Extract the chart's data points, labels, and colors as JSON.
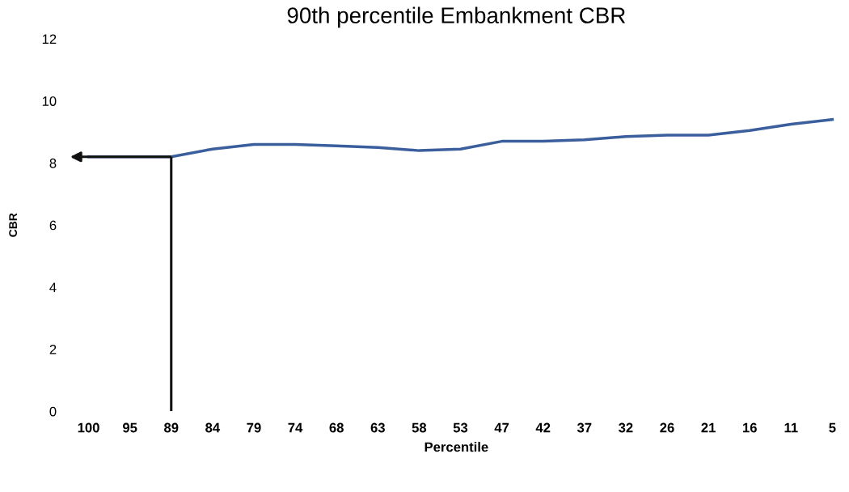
{
  "chart_data": {
    "type": "line",
    "title": "90th percentile Embankment CBR",
    "xlabel": "Percentile",
    "ylabel": "CBR",
    "categories": [
      "100",
      "95",
      "89",
      "84",
      "79",
      "74",
      "68",
      "63",
      "58",
      "53",
      "47",
      "42",
      "37",
      "32",
      "26",
      "21",
      "16",
      "11",
      "5"
    ],
    "series": [
      {
        "color": "#3b5f9c",
        "values": [
          8.2,
          8.2,
          8.2,
          8.45,
          8.6,
          8.6,
          8.55,
          8.5,
          8.4,
          8.45,
          8.7,
          8.7,
          8.75,
          8.85,
          8.9,
          8.9,
          9.05,
          9.25,
          9.4
        ]
      }
    ],
    "ylim": [
      0,
      12
    ],
    "yticks": [
      0,
      2,
      4,
      6,
      8,
      10,
      12
    ],
    "ref_lines": [
      {
        "axis": "x",
        "value": "89",
        "color": "#111111"
      },
      {
        "axis": "y",
        "value": 8.2,
        "color": "#111111"
      }
    ],
    "grid": false,
    "marker": "none",
    "line_style": "solid"
  }
}
